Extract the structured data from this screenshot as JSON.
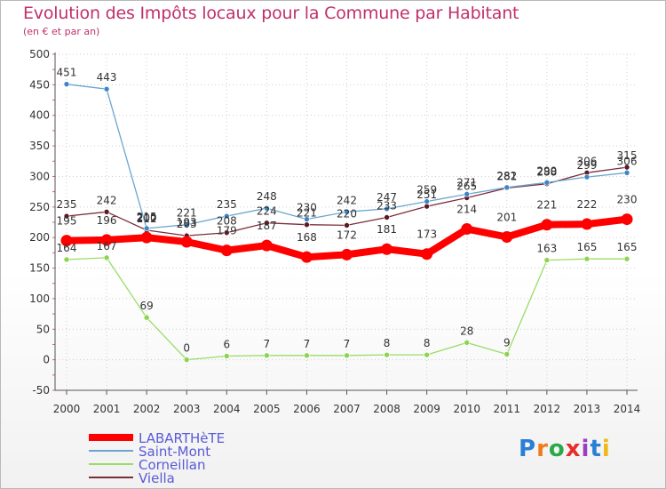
{
  "header": {
    "title": "Evolution des Impôts locaux pour la Commune par Habitant",
    "subtitle": "(en € et par an)"
  },
  "logo": {
    "text": "Proxiti"
  },
  "chart_data": {
    "type": "line",
    "x": [
      2000,
      2001,
      2002,
      2003,
      2004,
      2005,
      2006,
      2007,
      2008,
      2009,
      2010,
      2011,
      2012,
      2013,
      2014
    ],
    "ylim": [
      -50,
      500
    ],
    "yticks": [
      -50,
      0,
      50,
      100,
      150,
      200,
      250,
      300,
      350,
      400,
      450,
      500
    ],
    "grid": true,
    "legend_position": "bottom-left",
    "series": [
      {
        "name": "LABARTHèTE",
        "color": "#ff0000",
        "values": [
          195,
          196,
          200,
          193,
          179,
          187,
          168,
          172,
          181,
          173,
          214,
          201,
          221,
          222,
          230
        ],
        "labels": [
          "195",
          "196",
          "200",
          "193",
          "179",
          "187",
          "168",
          "172",
          "181",
          "173",
          "214",
          "201",
          "221",
          "222",
          "230"
        ]
      },
      {
        "name": "Saint-Mont",
        "color": "#6aa6cf",
        "values": [
          451,
          443,
          215,
          221,
          235,
          248,
          230,
          242,
          247,
          259,
          271,
          282,
          290,
          299,
          306
        ],
        "labels": [
          "451",
          "443",
          "215",
          "221",
          "235",
          "248",
          "230",
          "242",
          "247",
          "259",
          "271",
          "282",
          "290",
          "299",
          "306"
        ]
      },
      {
        "name": "Corneillan",
        "color": "#99dd66",
        "values": [
          164,
          167,
          69,
          0,
          6,
          7,
          7,
          7,
          8,
          8,
          28,
          9,
          163,
          165,
          165
        ],
        "labels": [
          "164",
          "167",
          "69",
          "0",
          "6",
          "7",
          "7",
          "7",
          "8",
          "8",
          "28",
          "9",
          "163",
          "165",
          "165"
        ]
      },
      {
        "name": "Viella",
        "color": "#7a2e3a",
        "values": [
          235,
          242,
          212,
          203,
          208,
          224,
          221,
          220,
          233,
          251,
          265,
          281,
          288,
          306,
          315
        ],
        "labels": [
          "235",
          "242",
          "212",
          "203",
          "208",
          "224",
          "221",
          "220",
          "233",
          "251",
          "265",
          "281",
          "288",
          "306",
          "315"
        ]
      }
    ]
  }
}
